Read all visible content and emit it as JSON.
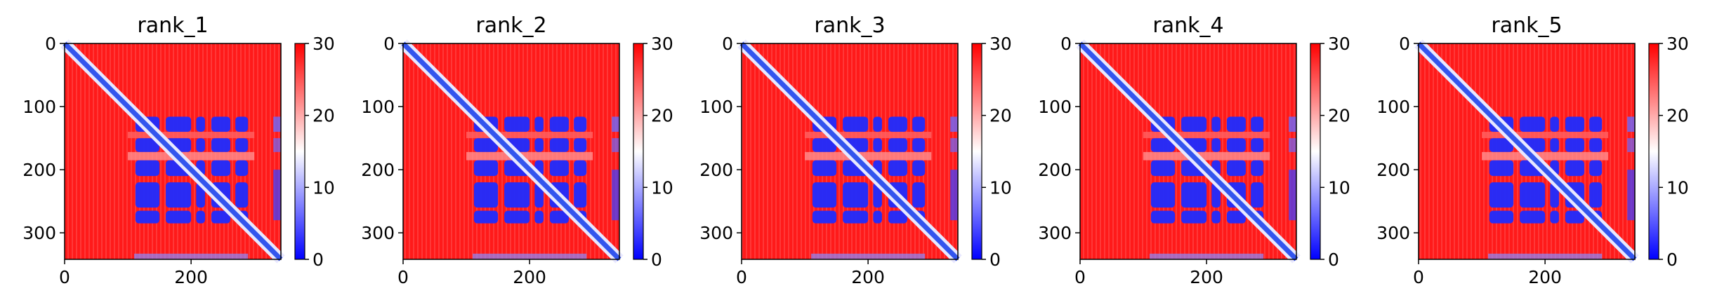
{
  "chart_data": [
    {
      "type": "heatmap",
      "title": "rank_1",
      "x_ticks": [
        "0",
        "200"
      ],
      "y_ticks": [
        "0",
        "100",
        "200",
        "300"
      ],
      "xlim": [
        0,
        342
      ],
      "ylim": [
        342,
        0
      ],
      "colorbar": {
        "ticks": [
          "0",
          "10",
          "20",
          "30"
        ],
        "range": [
          0,
          30
        ],
        "colormap": "bwr"
      }
    },
    {
      "type": "heatmap",
      "title": "rank_2",
      "x_ticks": [
        "0",
        "200"
      ],
      "y_ticks": [
        "0",
        "100",
        "200",
        "300"
      ],
      "xlim": [
        0,
        342
      ],
      "ylim": [
        342,
        0
      ],
      "colorbar": {
        "ticks": [
          "0",
          "10",
          "20",
          "30"
        ],
        "range": [
          0,
          30
        ],
        "colormap": "bwr"
      }
    },
    {
      "type": "heatmap",
      "title": "rank_3",
      "x_ticks": [
        "0",
        "200"
      ],
      "y_ticks": [
        "0",
        "100",
        "200",
        "300"
      ],
      "xlim": [
        0,
        342
      ],
      "ylim": [
        342,
        0
      ],
      "colorbar": {
        "ticks": [
          "0",
          "10",
          "20",
          "30"
        ],
        "range": [
          0,
          30
        ],
        "colormap": "bwr"
      }
    },
    {
      "type": "heatmap",
      "title": "rank_4",
      "x_ticks": [
        "0",
        "200"
      ],
      "y_ticks": [
        "0",
        "100",
        "200",
        "300"
      ],
      "xlim": [
        0,
        342
      ],
      "ylim": [
        342,
        0
      ],
      "colorbar": {
        "ticks": [
          "0",
          "10",
          "20",
          "30"
        ],
        "range": [
          0,
          30
        ],
        "colormap": "bwr"
      }
    },
    {
      "type": "heatmap",
      "title": "rank_5",
      "x_ticks": [
        "0",
        "200"
      ],
      "y_ticks": [
        "0",
        "100",
        "200",
        "300"
      ],
      "xlim": [
        0,
        342
      ],
      "ylim": [
        342,
        0
      ],
      "colorbar": {
        "ticks": [
          "0",
          "10",
          "20",
          "30"
        ],
        "range": [
          0,
          30
        ],
        "colormap": "bwr"
      }
    }
  ],
  "colors": {
    "high": "#ff0000",
    "mid": "#ffffff",
    "low": "#0000ff",
    "diagonal": "#3355ee"
  }
}
